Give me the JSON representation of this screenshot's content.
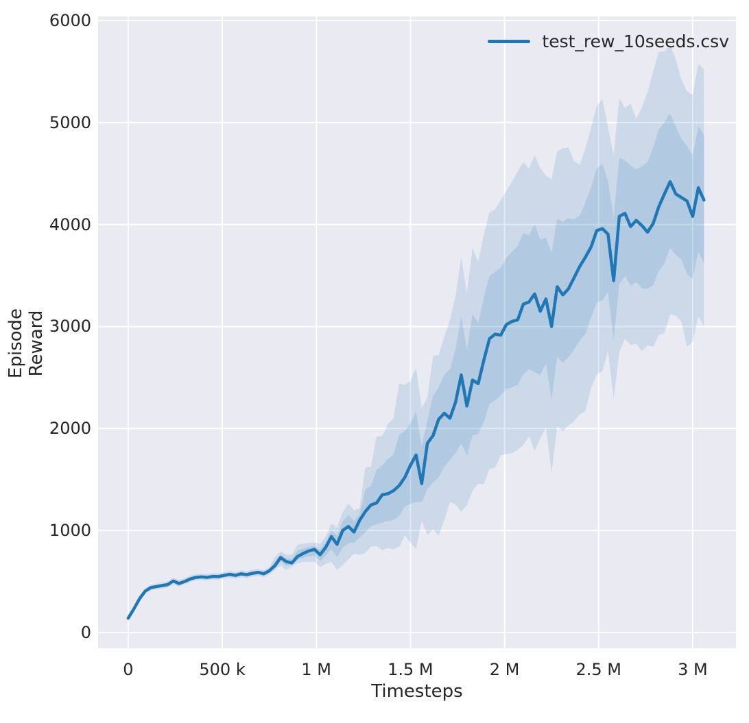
{
  "figure": {
    "background": "#ffffff",
    "plot_background": "#eaeaf2",
    "grid_color": "#ffffff",
    "text_color": "#262626"
  },
  "legend": {
    "label": "test_rew_10seeds.csv",
    "position": "upper right"
  },
  "chart_data": {
    "type": "line",
    "title": "",
    "xlabel": "Timesteps",
    "ylabel": "Episode Reward",
    "series_name": "test_rew_10seeds.csv",
    "line_color": "#1f77b4",
    "band_color": "#1f77b4",
    "band_alpha": 0.15,
    "inner_band_fraction": 0.5,
    "grid": true,
    "x_step": 30000,
    "xlim": [
      -160000,
      3230000
    ],
    "ylim": [
      -155,
      6040
    ],
    "x_ticks": [
      {
        "value": 0,
        "label": "0"
      },
      {
        "value": 500000,
        "label": "500 k"
      },
      {
        "value": 1000000,
        "label": "1 M"
      },
      {
        "value": 1500000,
        "label": "1.5 M"
      },
      {
        "value": 2000000,
        "label": "2 M"
      },
      {
        "value": 2500000,
        "label": "2.5 M"
      },
      {
        "value": 3000000,
        "label": "3 M"
      }
    ],
    "y_ticks": [
      {
        "value": 0,
        "label": "0"
      },
      {
        "value": 1000,
        "label": "1000"
      },
      {
        "value": 2000,
        "label": "2000"
      },
      {
        "value": 3000,
        "label": "3000"
      },
      {
        "value": 4000,
        "label": "4000"
      },
      {
        "value": 5000,
        "label": "5000"
      },
      {
        "value": 6000,
        "label": "6000"
      }
    ],
    "mean": [
      140,
      230,
      330,
      405,
      440,
      450,
      460,
      470,
      505,
      480,
      500,
      525,
      540,
      545,
      540,
      550,
      548,
      560,
      570,
      560,
      575,
      567,
      580,
      590,
      576,
      605,
      655,
      735,
      695,
      682,
      745,
      775,
      800,
      815,
      762,
      835,
      940,
      865,
      1000,
      1040,
      985,
      1100,
      1185,
      1250,
      1270,
      1350,
      1360,
      1390,
      1440,
      1520,
      1640,
      1740,
      1460,
      1855,
      1930,
      2090,
      2150,
      2100,
      2260,
      2525,
      2220,
      2475,
      2440,
      2670,
      2880,
      2925,
      2915,
      3020,
      3050,
      3065,
      3220,
      3240,
      3320,
      3150,
      3270,
      3000,
      3390,
      3310,
      3370,
      3480,
      3590,
      3680,
      3780,
      3940,
      3960,
      3905,
      3450,
      4080,
      4110,
      3980,
      4040,
      3990,
      3925,
      4010,
      4175,
      4300,
      4420,
      4300,
      4265,
      4230,
      4080,
      4360,
      4240
    ],
    "band_high": [
      160,
      262,
      362,
      432,
      468,
      478,
      490,
      500,
      538,
      515,
      532,
      558,
      572,
      578,
      572,
      582,
      580,
      592,
      602,
      592,
      608,
      600,
      614,
      624,
      610,
      640,
      740,
      795,
      762,
      762,
      860,
      872,
      880,
      882,
      868,
      940,
      1065,
      1030,
      1180,
      1266,
      1200,
      1215,
      1620,
      1625,
      1920,
      1925,
      2040,
      2100,
      2440,
      2430,
      2465,
      2595,
      2200,
      2300,
      2710,
      2720,
      2900,
      3065,
      3300,
      3677,
      3320,
      3771,
      3635,
      3900,
      4115,
      4150,
      4240,
      4330,
      4420,
      4520,
      4612,
      4545,
      4680,
      4552,
      4478,
      4444,
      4720,
      4747,
      4754,
      4620,
      4586,
      4750,
      4950,
      5160,
      5230,
      4950,
      4680,
      5240,
      5140,
      5185,
      5037,
      5150,
      5300,
      5500,
      5690,
      5700,
      5760,
      5620,
      5420,
      5306,
      5272,
      5576,
      5522
    ],
    "band_low": [
      120,
      205,
      300,
      378,
      412,
      422,
      432,
      442,
      475,
      450,
      472,
      495,
      510,
      515,
      510,
      520,
      516,
      528,
      538,
      528,
      542,
      534,
      546,
      556,
      542,
      570,
      613,
      660,
      613,
      646,
      680,
      690,
      693,
      693,
      640,
      673,
      693,
      613,
      660,
      715,
      775,
      762,
      780,
      842,
      848,
      808,
      828,
      815,
      842,
      950,
      880,
      820,
      1098,
      955,
      1010,
      950,
      1100,
      1280,
      1255,
      1185,
      1250,
      1390,
      1460,
      1455,
      1603,
      1616,
      1737,
      1751,
      1758,
      1790,
      1838,
      1926,
      1780,
      1900,
      2007,
      1569,
      2020,
      1973,
      2030,
      2070,
      2140,
      2170,
      2400,
      2530,
      2560,
      2768,
      2290,
      2750,
      2880,
      2820,
      2830,
      2760,
      2815,
      2800,
      2916,
      2936,
      3120,
      3105,
      3051,
      2801,
      2850,
      3100,
      3000
    ]
  }
}
